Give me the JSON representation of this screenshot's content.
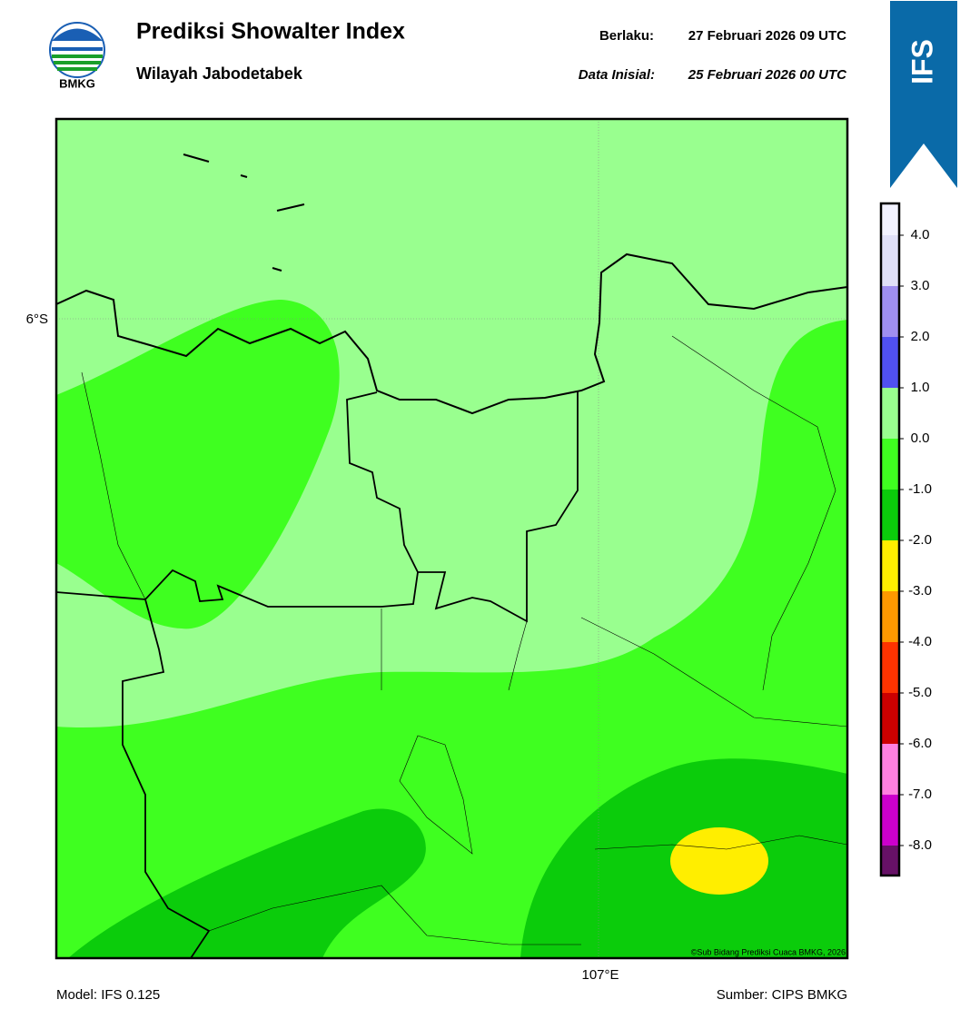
{
  "header": {
    "logo_text": "BMKG",
    "title": "Prediksi Showalter Index",
    "subtitle": "Wilayah Jabodetabek",
    "valid_label": "Berlaku:",
    "valid_time": "27 Februari 2026 09 UTC",
    "init_label": "Data Inisial:",
    "init_time": "25 Februari 2026 00 UTC",
    "badge": "IFS"
  },
  "map": {
    "lat_label": "6°S",
    "lon_label": "107°E",
    "credit": "©Sub Bidang Prediksi Cuaca BMKG, 2026"
  },
  "legend": {
    "colors": [
      "#f2f2ff",
      "#e0e0f8",
      "#9f8ff0",
      "#5050f0",
      "#99ff8f",
      "#3fff20",
      "#0bcc0b",
      "#ffee00",
      "#ff9900",
      "#ff3300",
      "#cc0000",
      "#ff80e0",
      "#cc00cc",
      "#661166"
    ],
    "ticks": [
      {
        "value": 4,
        "label": "4.0"
      },
      {
        "value": 3,
        "label": "3.0"
      },
      {
        "value": 2,
        "label": "2.0"
      },
      {
        "value": 1,
        "label": "1.0"
      },
      {
        "value": 0,
        "label": "0.0"
      },
      {
        "value": -1,
        "label": "-1.0"
      },
      {
        "value": -2,
        "label": "-2.0"
      },
      {
        "value": -3,
        "label": "-3.0"
      },
      {
        "value": -4,
        "label": "-4.0"
      },
      {
        "value": -5,
        "label": "-5.0"
      },
      {
        "value": -6,
        "label": "-6.0"
      },
      {
        "value": -7,
        "label": "-7.0"
      },
      {
        "value": -8,
        "label": "-8.0"
      }
    ]
  },
  "footer": {
    "model": "Model: IFS 0.125",
    "source": "Sumber: CIPS BMKG"
  }
}
